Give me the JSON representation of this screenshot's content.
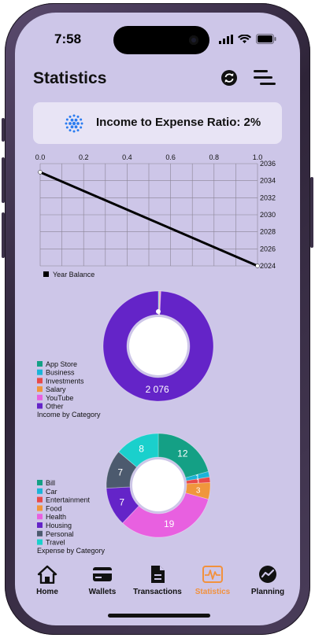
{
  "status_bar": {
    "time": "7:58"
  },
  "header": {
    "title": "Statistics"
  },
  "ratio_card": {
    "text": "Income to Expense Ratio: 2%"
  },
  "line_chart": {
    "legend_label": "Year Balance",
    "x_ticks": [
      "0.0",
      "0.2",
      "0.4",
      "0.6",
      "0.8",
      "1.0"
    ],
    "y_ticks": [
      "2036",
      "2034",
      "2032",
      "2030",
      "2028",
      "2026",
      "2024"
    ]
  },
  "income_chart": {
    "title": "Income by Category",
    "center_label": "2 076",
    "legend": [
      {
        "label": "App Store",
        "color": "#14a085"
      },
      {
        "label": "Business",
        "color": "#1bb4d8"
      },
      {
        "label": "Investments",
        "color": "#e84a4a"
      },
      {
        "label": "Salary",
        "color": "#f0963c"
      },
      {
        "label": "YouTube",
        "color": "#e860e0"
      },
      {
        "label": "Other",
        "color": "#6424c8"
      }
    ]
  },
  "expense_chart": {
    "title": "Expense by Category",
    "legend": [
      {
        "label": "Bill",
        "color": "#14a085"
      },
      {
        "label": "Car",
        "color": "#1bb4d8"
      },
      {
        "label": "Entertainment",
        "color": "#e84a4a"
      },
      {
        "label": "Food",
        "color": "#f0963c"
      },
      {
        "label": "Health",
        "color": "#e860e0"
      },
      {
        "label": "Housing",
        "color": "#6424c8"
      },
      {
        "label": "Personal",
        "color": "#4c5a6e"
      },
      {
        "label": "Travel",
        "color": "#1ad0cc"
      }
    ]
  },
  "chart_data": [
    {
      "type": "line",
      "x": [
        0.0,
        1.0
      ],
      "y": [
        2035,
        2024
      ],
      "xlim": [
        0,
        1
      ],
      "ylim": [
        2024,
        2036
      ],
      "grid": true,
      "legend": "bottom-left",
      "series": [
        {
          "name": "Year Balance",
          "color": "#000000"
        }
      ]
    },
    {
      "type": "pie",
      "donut": true,
      "title": "Income by Category",
      "categories": [
        "App Store",
        "Business",
        "Investments",
        "Salary",
        "YouTube",
        "Other"
      ],
      "values": [
        3,
        3,
        3,
        3,
        4,
        2076
      ],
      "slice_labels": [
        "",
        "",
        "",
        "",
        "",
        "2 076"
      ],
      "colors": [
        "#14a085",
        "#1bb4d8",
        "#e84a4a",
        "#f0963c",
        "#e860e0",
        "#6424c8"
      ]
    },
    {
      "type": "pie",
      "donut": true,
      "title": "Expense by Category",
      "categories": [
        "Bill",
        "Car",
        "Entertainment",
        "Food",
        "Health",
        "Housing",
        "Personal",
        "Travel"
      ],
      "values": [
        12,
        1,
        1,
        3,
        19,
        7,
        7,
        8
      ],
      "colors": [
        "#14a085",
        "#1bb4d8",
        "#e84a4a",
        "#f0963c",
        "#e860e0",
        "#6424c8",
        "#4c5a6e",
        "#1ad0cc"
      ]
    }
  ],
  "tabbar": {
    "items": [
      {
        "label": "Home",
        "icon": "home-icon"
      },
      {
        "label": "Wallets",
        "icon": "card-icon"
      },
      {
        "label": "Transactions",
        "icon": "document-icon"
      },
      {
        "label": "Statistics",
        "icon": "pulse-icon",
        "active": true
      },
      {
        "label": "Planning",
        "icon": "chart-circle-icon"
      }
    ],
    "active_color": "#f2913c"
  }
}
